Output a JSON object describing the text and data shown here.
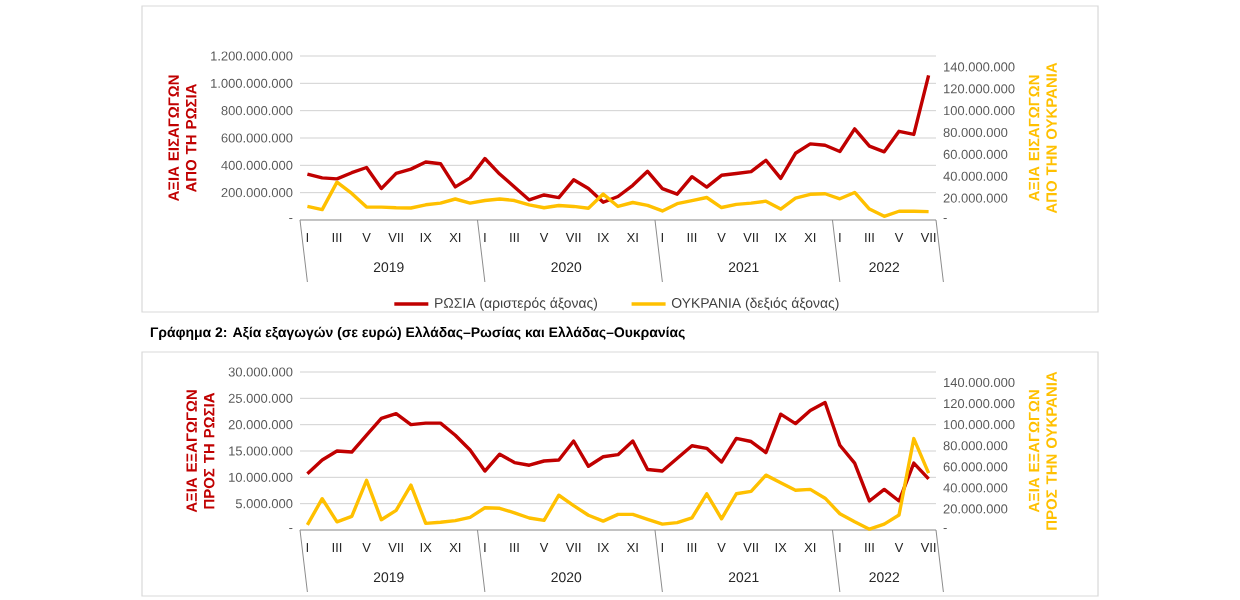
{
  "chart_data": [
    {
      "type": "line",
      "categories": [
        "I",
        null,
        "III",
        null,
        "V",
        null,
        "VII",
        null,
        "IX",
        null,
        "XI",
        null,
        "I",
        null,
        "III",
        null,
        "V",
        null,
        "VII",
        null,
        "IX",
        null,
        "XI",
        null,
        "I",
        null,
        "III",
        null,
        "V",
        null,
        "VII",
        null,
        "IX",
        null,
        "XI",
        null,
        "I",
        null,
        "III",
        null,
        "V",
        null,
        "VII"
      ],
      "annotations": [
        "2019",
        "2020",
        "2021",
        "2022"
      ],
      "ylabel": "ΑΞΙΑ ΕΙΣΑΓΩΓΩΝ ΑΠΟ ΤΗ ΡΩΣΙΑ",
      "y2label": "ΑΞΙΑ ΕΙΣΑΓΩΓΩΝ ΑΠΟ ΤΗΝ ΟΥΚΡΑΝΙΑ",
      "series": [
        {
          "name": "ΡΩΣΙΑ (αριστερός άξονας)",
          "color": "#c00000",
          "values": [
            336000000,
            308000000,
            301000000,
            346000000,
            384000000,
            230000000,
            341000000,
            372000000,
            424000000,
            412000000,
            242000000,
            308000000,
            450000000,
            336000000,
            242000000,
            147000000,
            183000000,
            164000000,
            294000000,
            230000000,
            130000000,
            172000000,
            254000000,
            356000000,
            230000000,
            189000000,
            317000000,
            241000000,
            327000000,
            340000000,
            354000000,
            437000000,
            304000000,
            488000000,
            557000000,
            547000000,
            501000000,
            667000000,
            541000000,
            499000000,
            649000000,
            626000000,
            1058000000
          ]
        },
        {
          "name": "ΟΥΚΡΑΝΙΑ (δεξιός άξονας)",
          "color": "#ffc000",
          "axis": "y2",
          "values": [
            12400000,
            9500000,
            34600000,
            24300000,
            11800000,
            11800000,
            11200000,
            11000000,
            13900000,
            15400000,
            19200000,
            15400000,
            17800000,
            19200000,
            17800000,
            13900000,
            11200000,
            13300000,
            12400000,
            10700000,
            23700000,
            12400000,
            16000000,
            13300000,
            8300000,
            14900000,
            17700000,
            20600000,
            11400000,
            14300000,
            15400000,
            17200000,
            10000000,
            20000000,
            23500000,
            24000000,
            19400000,
            25200000,
            10000000,
            3400000,
            8000000,
            8000000,
            7700000
          ]
        }
      ],
      "ylim": [
        0,
        1200000000
      ],
      "yticks": [
        {
          "value": 0,
          "label": "-"
        },
        {
          "value": 200000000,
          "label": "200.000.000"
        },
        {
          "value": 400000000,
          "label": "400.000.000"
        },
        {
          "value": 600000000,
          "label": "600.000.000"
        },
        {
          "value": 800000000,
          "label": "800.000.000"
        },
        {
          "value": 1000000000,
          "label": "1.000.000.000"
        },
        {
          "value": 1200000000,
          "label": "1.200.000.000"
        }
      ],
      "y2lim": [
        0,
        150000000
      ],
      "y2ticks": [
        {
          "value": 0,
          "label": "-"
        },
        {
          "value": 20000000,
          "label": "20.000.000"
        },
        {
          "value": 40000000,
          "label": "40.000.000"
        },
        {
          "value": 60000000,
          "label": "60.000.000"
        },
        {
          "value": 80000000,
          "label": "80.000.000"
        },
        {
          "value": 100000000,
          "label": "100.000.000"
        },
        {
          "value": 120000000,
          "label": "120.000.000"
        },
        {
          "value": 140000000,
          "label": "140.000.000"
        }
      ],
      "grid": "y",
      "legend": "bottom"
    },
    {
      "type": "line",
      "title": "Γράφημα 2: Αξία εξαγωγών (σε ευρώ) Ελλάδας–Ρωσίας και Ελλάδας–Ουκρανίας",
      "categories": [
        "I",
        null,
        "III",
        null,
        "V",
        null,
        "VII",
        null,
        "IX",
        null,
        "XI",
        null,
        "I",
        null,
        "III",
        null,
        "V",
        null,
        "VII",
        null,
        "IX",
        null,
        "XI",
        null,
        "I",
        null,
        "III",
        null,
        "V",
        null,
        "VII",
        null,
        "IX",
        null,
        "XI",
        null,
        "I",
        null,
        "III",
        null,
        "V",
        null,
        "VII"
      ],
      "annotations": [
        "2019",
        "2020",
        "2021",
        "2022"
      ],
      "ylabel": "ΑΞΙΑ ΕΞΑΓΩΓΩΝ ΠΡΟΣ ΤΗ ΡΩΣΙΑ",
      "y2label": "ΑΞΙΑ ΕΞΑΓΩΓΩΝ ΠΡΟΣ ΤΗΝ ΟΥΚΡΑΝΙΑ",
      "series": [
        {
          "color": "#c00000",
          "values": [
            10700000,
            13300000,
            15000000,
            14800000,
            18000000,
            21200000,
            22100000,
            20000000,
            20300000,
            20300000,
            18000000,
            15200000,
            11200000,
            14400000,
            12800000,
            12300000,
            13100000,
            13300000,
            16900000,
            12100000,
            13900000,
            14300000,
            16900000,
            11500000,
            11200000,
            13600000,
            16000000,
            15500000,
            12900000,
            17400000,
            16800000,
            14700000,
            22000000,
            20200000,
            22700000,
            24200000,
            16100000,
            12700000,
            5500000,
            7700000,
            5500000,
            12700000,
            9700000
          ]
        },
        {
          "color": "#ffc000",
          "axis": "y2",
          "values": [
            4900000,
            29700000,
            7700000,
            12900000,
            47100000,
            9700000,
            18600000,
            42600000,
            6300000,
            7400000,
            8900000,
            12000000,
            21100000,
            20600000,
            16300000,
            11400000,
            9100000,
            33000000,
            23200000,
            14000000,
            8400000,
            14800000,
            14800000,
            10100000,
            5600000,
            7000000,
            11500000,
            34400000,
            10600000,
            34400000,
            36700000,
            52100000,
            44800000,
            37800000,
            38600000,
            30200000,
            15400000,
            7800000,
            800000,
            5600000,
            14300000,
            86800000,
            54000000
          ]
        }
      ],
      "ylim": [
        0,
        30000000
      ],
      "yticks": [
        {
          "value": 0,
          "label": "-"
        },
        {
          "value": 5000000,
          "label": "5.000.000"
        },
        {
          "value": 10000000,
          "label": "10.000.000"
        },
        {
          "value": 15000000,
          "label": "15.000.000"
        },
        {
          "value": 20000000,
          "label": "20.000.000"
        },
        {
          "value": 25000000,
          "label": "25.000.000"
        },
        {
          "value": 30000000,
          "label": "30.000.000"
        }
      ],
      "y2lim": [
        0,
        150000000
      ],
      "y2ticks": [
        {
          "value": 0,
          "label": "-"
        },
        {
          "value": 20000000,
          "label": "20.000.000"
        },
        {
          "value": 40000000,
          "label": "40.000.000"
        },
        {
          "value": 60000000,
          "label": "60.000.000"
        },
        {
          "value": 80000000,
          "label": "80.000.000"
        },
        {
          "value": 100000000,
          "label": "100.000.000"
        },
        {
          "value": 120000000,
          "label": "120.000.000"
        },
        {
          "value": 140000000,
          "label": "140.000.000"
        }
      ],
      "grid": "y"
    }
  ]
}
